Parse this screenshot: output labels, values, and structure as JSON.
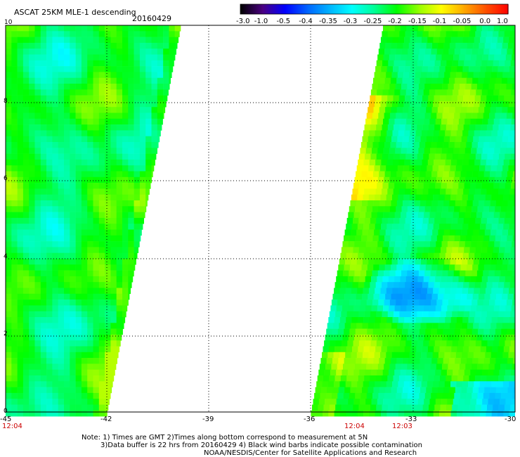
{
  "header": {
    "title": "ASCAT 25KM MLE-1 descending",
    "date": "20160429"
  },
  "colorbar": {
    "labels": [
      "-3.0",
      "-1.0",
      "-0.5",
      "-0.4",
      "-0.35",
      "-0.3",
      "-0.25",
      "-0.2",
      "-0.15",
      "-0.1",
      "-0.05",
      "0.0",
      "1.0"
    ],
    "colors": [
      "#000000",
      "#4b0082",
      "#0000ff",
      "#0064ff",
      "#00b4ff",
      "#00ffff",
      "#00ff96",
      "#00ff00",
      "#96ff00",
      "#ffff00",
      "#ffaa00",
      "#ff5000",
      "#ff0000"
    ]
  },
  "map": {
    "lon_ticks": [
      "-45",
      "-42",
      "-39",
      "-36",
      "-33",
      "-30"
    ],
    "lat_ticks": [
      "10",
      "8",
      "6",
      "4",
      "2",
      "0"
    ],
    "lon_range": [
      -45,
      -30
    ],
    "lat_range": [
      0,
      10
    ],
    "grid": "dotted",
    "swath_times": [
      {
        "label": "12:04",
        "lon": -45
      },
      {
        "label": "12:04",
        "lon": -34.4
      },
      {
        "label": "12:03",
        "lon": -33
      }
    ]
  },
  "notes": {
    "line1": "Note: 1) Times are GMT 2)Times along bottom correspond to measurement at 5N",
    "line2": "3)Data buffer is 22 hrs from 20160429 4) Black wind barbs indicate possible contamination",
    "line3": "NOAA/NESDIS/Center for Satellite Applications and Research"
  }
}
